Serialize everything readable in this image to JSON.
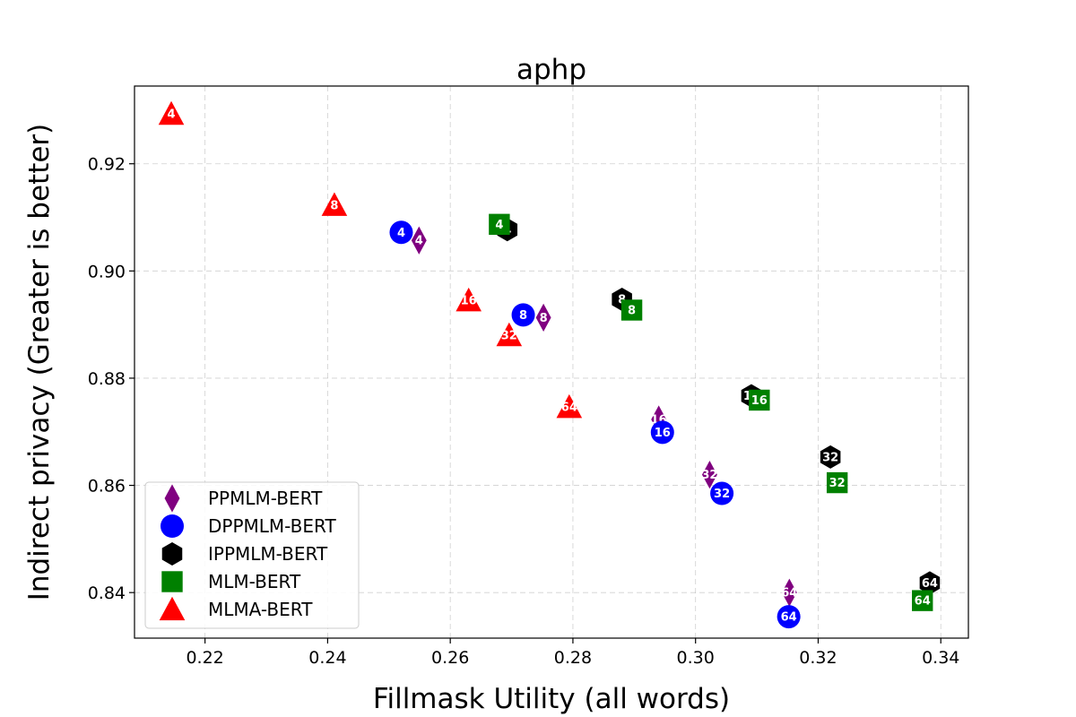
{
  "chart_data": {
    "type": "scatter",
    "title": "aphp",
    "xlabel": "Fillmask Utility (all words)",
    "ylabel": "Indirect privacy (Greater is better)",
    "xlim": [
      0.2085,
      0.3445
    ],
    "ylim": [
      0.8315,
      0.9345
    ],
    "xticks": [
      "0.22",
      "0.24",
      "0.26",
      "0.28",
      "0.30",
      "0.32",
      "0.34"
    ],
    "yticks": [
      "0.84",
      "0.86",
      "0.88",
      "0.90",
      "0.92"
    ],
    "grid": true,
    "legend_position": "lower-left",
    "series": [
      {
        "name": "PPMLM-BERT",
        "marker": "diamond",
        "color": "#800080",
        "points": [
          {
            "x": 0.2549,
            "y": 0.9057,
            "label": "4"
          },
          {
            "x": 0.2752,
            "y": 0.8913,
            "label": "8"
          },
          {
            "x": 0.294,
            "y": 0.8723,
            "label": "16"
          },
          {
            "x": 0.3023,
            "y": 0.862,
            "label": "32"
          },
          {
            "x": 0.3153,
            "y": 0.84,
            "label": "64"
          }
        ]
      },
      {
        "name": "DPPMLM-BERT",
        "marker": "circle",
        "color": "#0000ff",
        "points": [
          {
            "x": 0.252,
            "y": 0.9072,
            "label": "4"
          },
          {
            "x": 0.2719,
            "y": 0.8918,
            "label": "8"
          },
          {
            "x": 0.2946,
            "y": 0.8699,
            "label": "16"
          },
          {
            "x": 0.3043,
            "y": 0.8585,
            "label": "32"
          },
          {
            "x": 0.3152,
            "y": 0.8355,
            "label": "64"
          }
        ]
      },
      {
        "name": "IPPMLM-BERT",
        "marker": "hexagon",
        "color": "#000000",
        "points": [
          {
            "x": 0.2693,
            "y": 0.9077,
            "label": "4"
          },
          {
            "x": 0.288,
            "y": 0.8947,
            "label": "8"
          },
          {
            "x": 0.3091,
            "y": 0.8767,
            "label": "16"
          },
          {
            "x": 0.322,
            "y": 0.8653,
            "label": "32"
          },
          {
            "x": 0.3382,
            "y": 0.8418,
            "label": "64"
          }
        ]
      },
      {
        "name": "MLM-BERT",
        "marker": "square",
        "color": "#008000",
        "points": [
          {
            "x": 0.268,
            "y": 0.9087,
            "label": "4"
          },
          {
            "x": 0.2896,
            "y": 0.8927,
            "label": "8"
          },
          {
            "x": 0.3104,
            "y": 0.8759,
            "label": "16"
          },
          {
            "x": 0.3231,
            "y": 0.8605,
            "label": "32"
          },
          {
            "x": 0.337,
            "y": 0.8385,
            "label": "64"
          }
        ]
      },
      {
        "name": "MLMA-BERT",
        "marker": "triangle",
        "color": "#ff0000",
        "points": [
          {
            "x": 0.2145,
            "y": 0.9293,
            "label": "4"
          },
          {
            "x": 0.2411,
            "y": 0.9123,
            "label": "8"
          },
          {
            "x": 0.263,
            "y": 0.8945,
            "label": "16"
          },
          {
            "x": 0.2696,
            "y": 0.888,
            "label": "32"
          },
          {
            "x": 0.2794,
            "y": 0.8746,
            "label": "64"
          }
        ]
      }
    ]
  }
}
